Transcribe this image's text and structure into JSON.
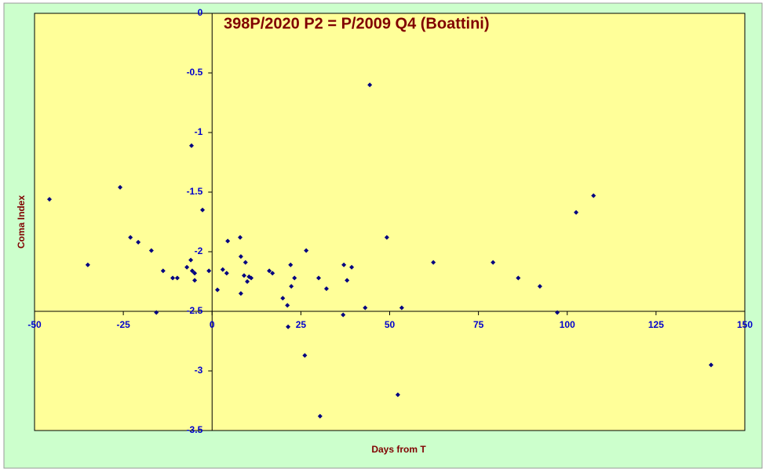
{
  "chart_data": {
    "type": "scatter",
    "title": "398P/2020 P2 = P/2009 Q4 (Boattini)",
    "x_label": "Days from T",
    "y_label": "Coma Index",
    "xlim": [
      -50,
      150
    ],
    "xticks": [
      -50,
      -25,
      0,
      25,
      50,
      75,
      100,
      125,
      150
    ],
    "ylim": [
      -3.5,
      0
    ],
    "yticks": [
      0,
      -0.5,
      -1,
      -1.5,
      -2,
      -2.5,
      -3,
      -3.5
    ],
    "x_axis_at": -2.5,
    "y_axis_at": 0,
    "series": [
      {
        "color": "#000080",
        "x": [
          -45.8,
          -35.0,
          -25.9,
          -23.0,
          -20.8,
          -17.1,
          -15.7,
          -13.8,
          -11.1,
          -9.8,
          -7.1,
          -5.8,
          -6.0,
          -5.6,
          -4.9,
          -4.9,
          -2.7,
          -0.9,
          1.5,
          3.0,
          4.1,
          4.4,
          7.9,
          8.1,
          8.1,
          9.0,
          9.4,
          9.9,
          10.4,
          11.0,
          16.1,
          17.0,
          19.9,
          21.2,
          21.4,
          22.1,
          22.3,
          23.2,
          26.1,
          26.5,
          30.0,
          30.4,
          32.2,
          36.9,
          37.1,
          38.0,
          39.3,
          43.1,
          44.4,
          49.2,
          52.3,
          53.4,
          62.3,
          79.1,
          86.2,
          92.3,
          97.2,
          102.5,
          107.4,
          140.5
        ],
        "values": [
          -1.56,
          -2.11,
          -1.46,
          -1.88,
          -1.92,
          -1.99,
          -2.51,
          -2.16,
          -2.22,
          -2.22,
          -2.13,
          -1.11,
          -2.07,
          -2.16,
          -2.18,
          -2.24,
          -1.65,
          -2.16,
          -2.32,
          -2.15,
          -2.18,
          -1.91,
          -1.88,
          -2.04,
          -2.35,
          -2.2,
          -2.09,
          -2.25,
          -2.21,
          -2.22,
          -2.16,
          -2.18,
          -2.39,
          -2.45,
          -2.63,
          -2.11,
          -2.29,
          -2.22,
          -2.87,
          -1.99,
          -2.22,
          -3.38,
          -2.31,
          -2.53,
          -2.11,
          -2.24,
          -2.13,
          -2.47,
          -0.6,
          -1.88,
          -3.2,
          -2.47,
          -2.09,
          -2.09,
          -2.22,
          -2.29,
          -2.51,
          -1.67,
          -1.53,
          -2.95
        ]
      }
    ]
  }
}
